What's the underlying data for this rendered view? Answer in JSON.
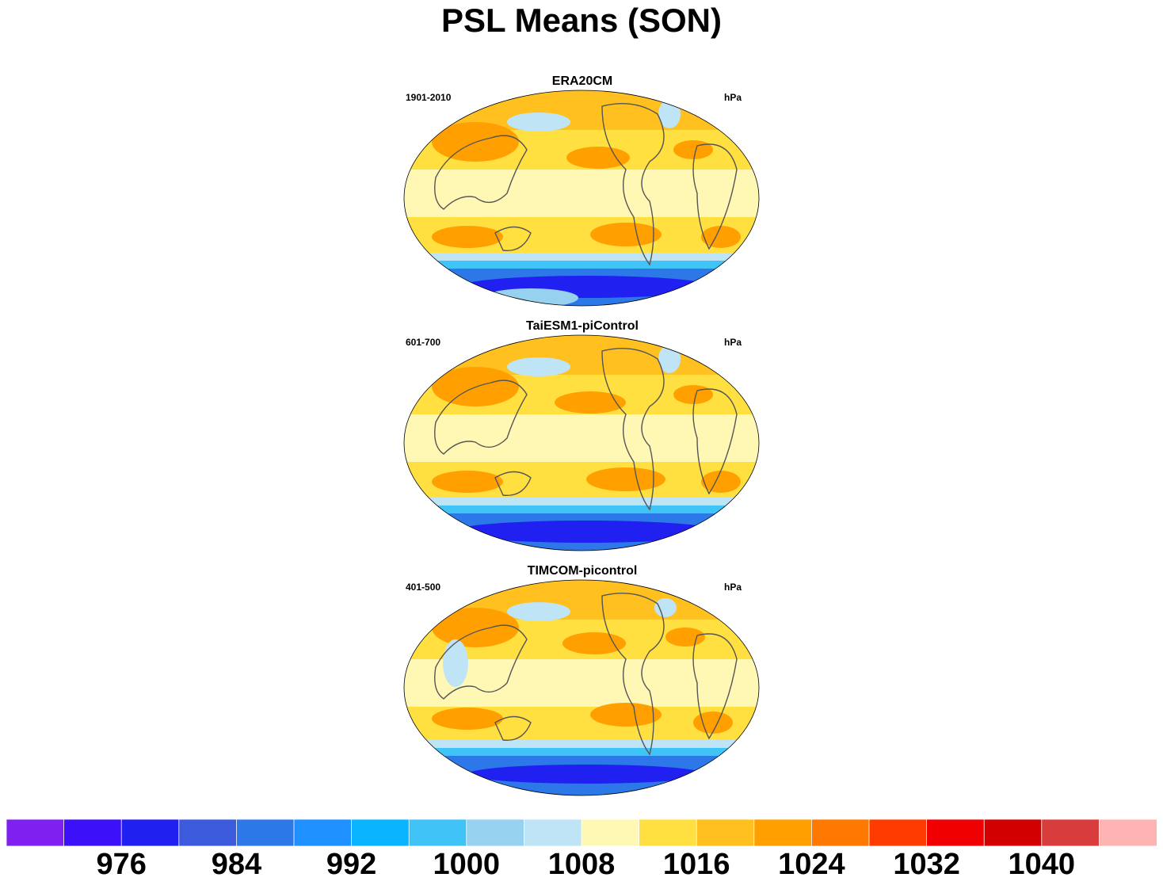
{
  "figure": {
    "title": "PSL Means (SON)"
  },
  "panels": [
    {
      "title": "ERA20CM",
      "years": "1901-2010",
      "units": "hPa"
    },
    {
      "title": "TaiESM1-piControl",
      "years": "601-700",
      "units": "hPa"
    },
    {
      "title": "TIMCOM-picontrol",
      "years": "401-500",
      "units": "hPa"
    }
  ],
  "colorbar": {
    "colors": [
      "#8020f0",
      "#3c10f8",
      "#2020f0",
      "#3c5adc",
      "#2d78e8",
      "#1e90ff",
      "#0ab4ff",
      "#40c4f8",
      "#96d2f0",
      "#bee4f6",
      "#fff8b4",
      "#ffe040",
      "#ffc020",
      "#ffa000",
      "#ff7800",
      "#ff3c00",
      "#f00000",
      "#d20000",
      "#d83c3c",
      "#ffb4b4"
    ],
    "labels": [
      "976",
      "984",
      "992",
      "1000",
      "1008",
      "1016",
      "1024",
      "1032",
      "1040"
    ]
  },
  "chart_data": {
    "type": "heatmap",
    "title": "PSL Means (SON)",
    "units": "hPa",
    "levels": [
      972,
      976,
      980,
      984,
      988,
      992,
      996,
      1000,
      1004,
      1008,
      1012,
      1016,
      1020,
      1024,
      1028,
      1032,
      1036,
      1040,
      1044
    ],
    "panels": [
      {
        "name": "ERA20CM",
        "period": "1901-2010"
      },
      {
        "name": "TaiESM1-piControl",
        "period": "601-700"
      },
      {
        "name": "TIMCOM-picontrol",
        "period": "401-500"
      }
    ]
  }
}
